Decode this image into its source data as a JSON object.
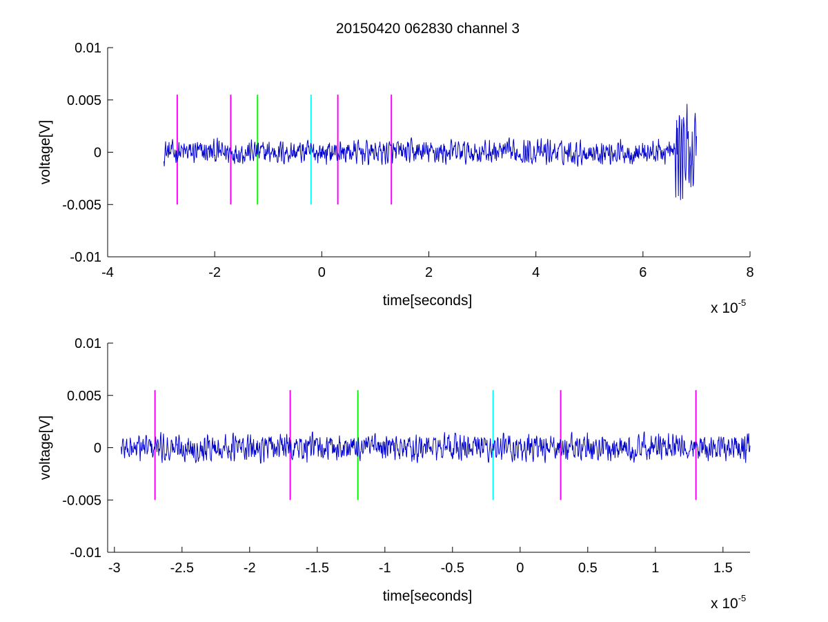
{
  "figure_title": "20150420 062830 channel 3",
  "chart_data": [
    {
      "type": "line",
      "xlabel": "time[seconds]",
      "ylabel": "voltage[V]",
      "x_exponent_base": "x 10",
      "x_exponent_power": "-5",
      "xlim": [
        -4,
        8
      ],
      "ylim": [
        -0.01,
        0.01
      ],
      "xticks": [
        -4,
        -2,
        0,
        2,
        4,
        6,
        8
      ],
      "xtick_labels": [
        "-4",
        "-2",
        "0",
        "2",
        "4",
        "6",
        "8"
      ],
      "yticks": [
        0.01,
        0.005,
        0,
        -0.005,
        -0.01
      ],
      "ytick_labels": [
        "0.01",
        "0.005",
        "0",
        "-0.005",
        "-0.01"
      ],
      "grid": false,
      "series": [
        {
          "color": "#0000cc",
          "x_range": [
            -2.95,
            7.0
          ],
          "noise_amplitude": 0.0009,
          "burst_near_end_amplitude": 0.0043
        }
      ],
      "markers": [
        {
          "x": -2.7,
          "color": "#ff00ff",
          "y_range": [
            -0.005,
            0.0055
          ]
        },
        {
          "x": -1.7,
          "color": "#ff00ff",
          "y_range": [
            -0.005,
            0.0055
          ]
        },
        {
          "x": -1.2,
          "color": "#00ff00",
          "y_range": [
            -0.005,
            0.0055
          ]
        },
        {
          "x": -0.2,
          "color": "#00ffff",
          "y_range": [
            -0.005,
            0.0055
          ]
        },
        {
          "x": 0.3,
          "color": "#ff00ff",
          "y_range": [
            -0.005,
            0.0055
          ]
        },
        {
          "x": 1.3,
          "color": "#ff00ff",
          "y_range": [
            -0.005,
            0.0055
          ]
        }
      ]
    },
    {
      "type": "line",
      "xlabel": "time[seconds]",
      "ylabel": "voltage[V]",
      "x_exponent_base": "x 10",
      "x_exponent_power": "-5",
      "xlim": [
        -3.05,
        1.7
      ],
      "ylim": [
        -0.01,
        0.01
      ],
      "xticks": [
        -3,
        -2.5,
        -2,
        -1.5,
        -1,
        -0.5,
        0,
        0.5,
        1,
        1.5
      ],
      "xtick_labels": [
        "-3",
        "-2.5",
        "-2",
        "-1.5",
        "-1",
        "-0.5",
        "0",
        "0.5",
        "1",
        "1.5"
      ],
      "yticks": [
        0.01,
        0.005,
        0,
        -0.005,
        -0.01
      ],
      "ytick_labels": [
        "0.01",
        "0.005",
        "0",
        "-0.005",
        "-0.01"
      ],
      "grid": false,
      "series": [
        {
          "color": "#0000cc",
          "x_range": [
            -2.95,
            1.7
          ],
          "noise_amplitude": 0.001
        }
      ],
      "markers": [
        {
          "x": -2.7,
          "color": "#ff00ff",
          "y_range": [
            -0.005,
            0.0055
          ]
        },
        {
          "x": -1.7,
          "color": "#ff00ff",
          "y_range": [
            -0.005,
            0.0055
          ]
        },
        {
          "x": -1.2,
          "color": "#00ff00",
          "y_range": [
            -0.005,
            0.0055
          ]
        },
        {
          "x": -0.2,
          "color": "#00ffff",
          "y_range": [
            -0.005,
            0.0055
          ]
        },
        {
          "x": 0.3,
          "color": "#ff00ff",
          "y_range": [
            -0.005,
            0.0055
          ]
        },
        {
          "x": 1.3,
          "color": "#ff00ff",
          "y_range": [
            -0.005,
            0.0055
          ]
        }
      ]
    }
  ]
}
